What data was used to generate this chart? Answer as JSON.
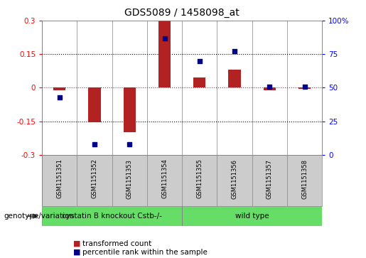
{
  "title": "GDS5089 / 1458098_at",
  "samples": [
    "GSM1151351",
    "GSM1151352",
    "GSM1151353",
    "GSM1151354",
    "GSM1151355",
    "GSM1151356",
    "GSM1151357",
    "GSM1151358"
  ],
  "transformed_counts": [
    -0.01,
    -0.155,
    -0.2,
    0.3,
    0.045,
    0.08,
    -0.01,
    -0.005
  ],
  "percentile_ranks": [
    43,
    8,
    8,
    87,
    70,
    77,
    51,
    51
  ],
  "ylim_left": [
    -0.3,
    0.3
  ],
  "ylim_right": [
    0,
    100
  ],
  "yticks_left": [
    -0.3,
    -0.15,
    0,
    0.15,
    0.3
  ],
  "yticks_right": [
    0,
    25,
    50,
    75,
    100
  ],
  "ytick_labels_left": [
    "-0.3",
    "-0.15",
    "0",
    "0.15",
    "0.3"
  ],
  "ytick_labels_right": [
    "0",
    "25",
    "50",
    "75",
    "100%"
  ],
  "group1_label": "cystatin B knockout Cstb-/-",
  "group2_label": "wild type",
  "group1_samples": [
    0,
    1,
    2,
    3
  ],
  "group2_samples": [
    4,
    5,
    6,
    7
  ],
  "genotype_label": "genotype/variation",
  "bar_color": "#b22222",
  "dot_color": "#00008b",
  "group_color": "#66dd66",
  "legend_bar_label": "transformed count",
  "legend_dot_label": "percentile rank within the sample",
  "bar_width": 0.35,
  "bg_color": "#ffffff",
  "label_area_color": "#cccccc",
  "dot_size": 18
}
